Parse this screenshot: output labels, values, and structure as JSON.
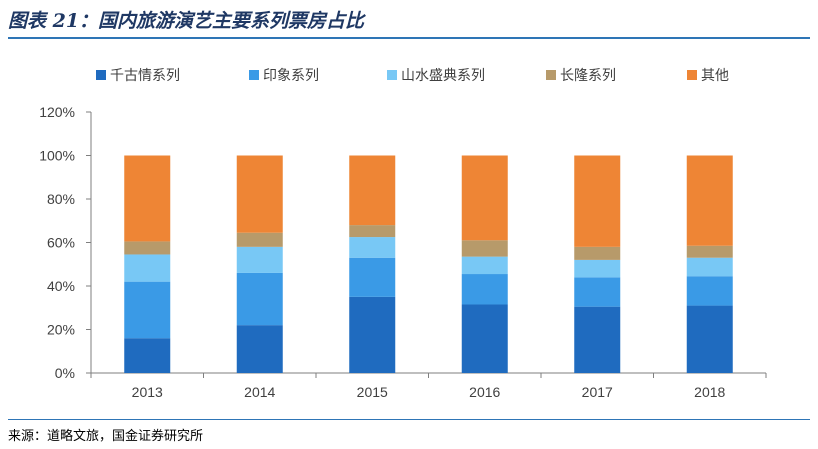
{
  "title": "图表 21：国内旅游演艺主要系列票房占比",
  "source": "来源：道略文旅，国金证券研究所",
  "colors": {
    "series": [
      "#1f6bbf",
      "#3a9ae6",
      "#78c8f5",
      "#b79a6a",
      "#ee8535"
    ],
    "axis": "#7f7f7f",
    "title": "#1f3864",
    "rule": "#2e75b6"
  },
  "chart_data": {
    "type": "bar",
    "stacked": true,
    "categories": [
      "2013",
      "2014",
      "2015",
      "2016",
      "2017",
      "2018"
    ],
    "series": [
      {
        "name": "千古情系列",
        "values": [
          16,
          22,
          35,
          31.5,
          30.5,
          31
        ]
      },
      {
        "name": "印象系列",
        "values": [
          26,
          24,
          18,
          14,
          13.5,
          13.5
        ]
      },
      {
        "name": "山水盛典系列",
        "values": [
          12.5,
          12,
          9.5,
          8,
          8,
          8.5
        ]
      },
      {
        "name": "长隆系列",
        "values": [
          6,
          6.5,
          5.5,
          7.5,
          6,
          5.5
        ]
      },
      {
        "name": "其他",
        "values": [
          39.5,
          35.5,
          32,
          39,
          42,
          41.5
        ]
      }
    ],
    "ylim": [
      0,
      120
    ],
    "yticks": [
      "0%",
      "20%",
      "40%",
      "60%",
      "80%",
      "100%",
      "120%"
    ],
    "ytick_values": [
      0,
      20,
      40,
      60,
      80,
      100,
      120
    ],
    "legend_position": "top",
    "grid": false
  }
}
